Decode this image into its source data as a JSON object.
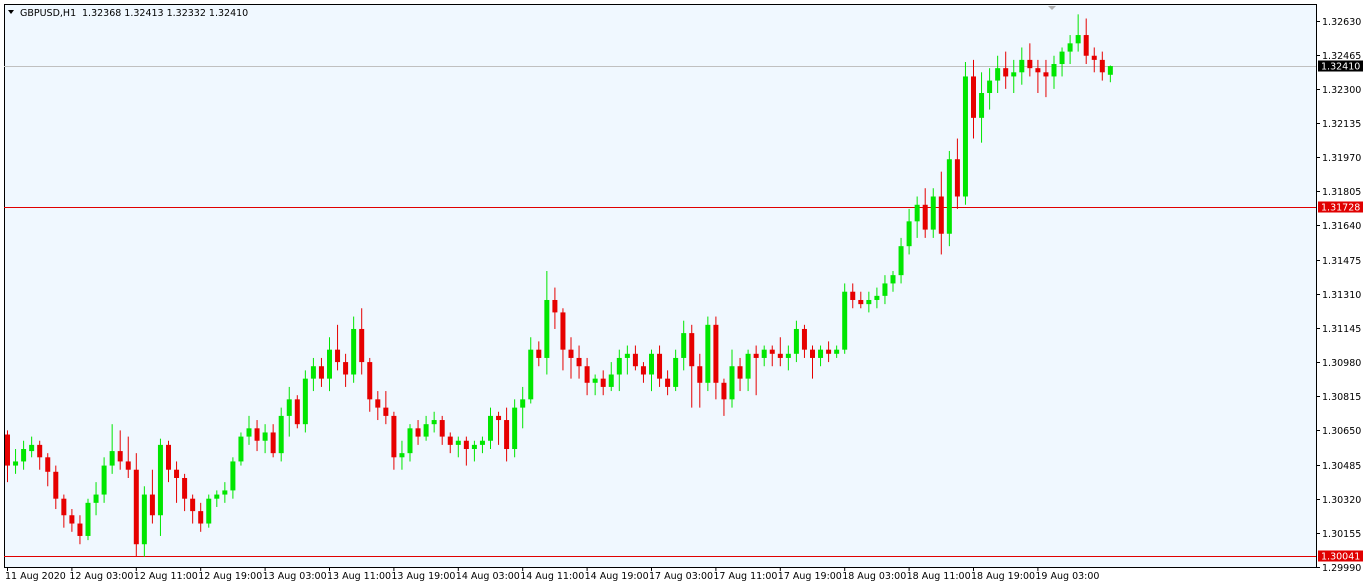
{
  "header": {
    "symbol": "GBPUSD,H1",
    "ohlc": "1.32368 1.32413 1.32332 1.32410"
  },
  "colors": {
    "background": "#f0f8ff",
    "bull": "#00e600",
    "bear": "#e60000",
    "hline": "#e00000",
    "bid_line": "#c0c0c0",
    "frame": "#000000"
  },
  "chart_data": {
    "type": "candlestick",
    "symbol": "GBPUSD",
    "timeframe": "H1",
    "ylim": [
      1.2999,
      1.3271
    ],
    "y_ticks": [
      "1.32630",
      "1.32465",
      "1.32300",
      "1.32135",
      "1.31970",
      "1.31805",
      "1.31640",
      "1.31475",
      "1.31310",
      "1.31145",
      "1.30980",
      "1.30815",
      "1.30650",
      "1.30485",
      "1.30320",
      "1.30155",
      "1.29990"
    ],
    "x_labels": [
      "11 Aug 2020",
      "12 Aug 03:00",
      "12 Aug 11:00",
      "12 Aug 19:00",
      "13 Aug 03:00",
      "13 Aug 11:00",
      "13 Aug 19:00",
      "14 Aug 03:00",
      "14 Aug 11:00",
      "14 Aug 19:00",
      "17 Aug 03:00",
      "17 Aug 11:00",
      "17 Aug 19:00",
      "18 Aug 03:00",
      "18 Aug 11:00",
      "18 Aug 19:00",
      "19 Aug 03:00"
    ],
    "x_label_every": 8,
    "horizontal_lines": [
      {
        "value": 1.31728,
        "label": "1.31728",
        "style": "red"
      },
      {
        "value": 1.30041,
        "label": "1.30041",
        "style": "red"
      }
    ],
    "current_price": {
      "value": 1.3241,
      "label": "1.32410"
    },
    "candles": [
      [
        1.3063,
        1.3065,
        1.304,
        1.3048
      ],
      [
        1.3048,
        1.3056,
        1.3044,
        1.305
      ],
      [
        1.305,
        1.306,
        1.3046,
        1.3056
      ],
      [
        1.3055,
        1.3062,
        1.3052,
        1.3058
      ],
      [
        1.3058,
        1.306,
        1.3046,
        1.3052
      ],
      [
        1.3052,
        1.3054,
        1.3038,
        1.3045
      ],
      [
        1.3045,
        1.3048,
        1.3027,
        1.3032
      ],
      [
        1.3032,
        1.3034,
        1.3018,
        1.3024
      ],
      [
        1.3024,
        1.3027,
        1.3016,
        1.302
      ],
      [
        1.302,
        1.3024,
        1.301,
        1.3014
      ],
      [
        1.3014,
        1.3032,
        1.3012,
        1.303
      ],
      [
        1.303,
        1.304,
        1.3024,
        1.3034
      ],
      [
        1.3034,
        1.3052,
        1.303,
        1.3048
      ],
      [
        1.3048,
        1.3068,
        1.3044,
        1.3055
      ],
      [
        1.3055,
        1.3065,
        1.3046,
        1.305
      ],
      [
        1.305,
        1.3062,
        1.3042,
        1.3046
      ],
      [
        1.3046,
        1.3054,
        1.3004,
        1.301
      ],
      [
        1.301,
        1.3038,
        1.3004,
        1.3034
      ],
      [
        1.3034,
        1.3046,
        1.302,
        1.3024
      ],
      [
        1.3024,
        1.3061,
        1.3014,
        1.3058
      ],
      [
        1.3058,
        1.306,
        1.304,
        1.3046
      ],
      [
        1.3046,
        1.305,
        1.303,
        1.3042
      ],
      [
        1.3042,
        1.3044,
        1.3026,
        1.3032
      ],
      [
        1.3032,
        1.3034,
        1.302,
        1.3026
      ],
      [
        1.3026,
        1.303,
        1.3016,
        1.302
      ],
      [
        1.302,
        1.3034,
        1.3018,
        1.3032
      ],
      [
        1.3032,
        1.3036,
        1.3028,
        1.3034
      ],
      [
        1.3034,
        1.304,
        1.303,
        1.3036
      ],
      [
        1.3036,
        1.3052,
        1.3032,
        1.305
      ],
      [
        1.305,
        1.3064,
        1.3048,
        1.3062
      ],
      [
        1.3062,
        1.3072,
        1.3058,
        1.3066
      ],
      [
        1.3066,
        1.307,
        1.3055,
        1.306
      ],
      [
        1.306,
        1.3068,
        1.3054,
        1.3064
      ],
      [
        1.3064,
        1.3068,
        1.3052,
        1.3054
      ],
      [
        1.3054,
        1.3076,
        1.305,
        1.3072
      ],
      [
        1.3072,
        1.3086,
        1.3062,
        1.308
      ],
      [
        1.308,
        1.3082,
        1.3066,
        1.3068
      ],
      [
        1.3068,
        1.3094,
        1.3064,
        1.309
      ],
      [
        1.309,
        1.31,
        1.3084,
        1.3096
      ],
      [
        1.3096,
        1.31,
        1.3086,
        1.309
      ],
      [
        1.309,
        1.311,
        1.3084,
        1.3104
      ],
      [
        1.3104,
        1.3116,
        1.3094,
        1.3098
      ],
      [
        1.3098,
        1.3102,
        1.3086,
        1.3092
      ],
      [
        1.3092,
        1.312,
        1.3088,
        1.3114
      ],
      [
        1.3114,
        1.3124,
        1.3092,
        1.3098
      ],
      [
        1.3098,
        1.31,
        1.3074,
        1.308
      ],
      [
        1.308,
        1.3084,
        1.307,
        1.3076
      ],
      [
        1.3076,
        1.3084,
        1.3068,
        1.3072
      ],
      [
        1.3072,
        1.3074,
        1.3046,
        1.3052
      ],
      [
        1.3052,
        1.306,
        1.3046,
        1.3054
      ],
      [
        1.3054,
        1.3068,
        1.305,
        1.3066
      ],
      [
        1.3066,
        1.307,
        1.3058,
        1.3062
      ],
      [
        1.3062,
        1.3072,
        1.306,
        1.3068
      ],
      [
        1.3068,
        1.3074,
        1.3064,
        1.307
      ],
      [
        1.307,
        1.3072,
        1.3058,
        1.3062
      ],
      [
        1.3062,
        1.3064,
        1.3054,
        1.3058
      ],
      [
        1.3058,
        1.3062,
        1.3052,
        1.306
      ],
      [
        1.306,
        1.3062,
        1.3048,
        1.3056
      ],
      [
        1.3056,
        1.306,
        1.305,
        1.3058
      ],
      [
        1.3058,
        1.3062,
        1.3054,
        1.306
      ],
      [
        1.306,
        1.3076,
        1.3056,
        1.3072
      ],
      [
        1.3072,
        1.3074,
        1.3058,
        1.307
      ],
      [
        1.307,
        1.3076,
        1.305,
        1.3056
      ],
      [
        1.3056,
        1.308,
        1.3052,
        1.3076
      ],
      [
        1.3076,
        1.3086,
        1.3066,
        1.308
      ],
      [
        1.308,
        1.311,
        1.3078,
        1.3104
      ],
      [
        1.3104,
        1.3108,
        1.3096,
        1.31
      ],
      [
        1.31,
        1.3142,
        1.3092,
        1.3128
      ],
      [
        1.3128,
        1.3134,
        1.3114,
        1.3122
      ],
      [
        1.3122,
        1.3124,
        1.3094,
        1.3104
      ],
      [
        1.3104,
        1.311,
        1.309,
        1.31
      ],
      [
        1.31,
        1.3106,
        1.309,
        1.3096
      ],
      [
        1.3096,
        1.31,
        1.3082,
        1.3088
      ],
      [
        1.3088,
        1.3092,
        1.3082,
        1.309
      ],
      [
        1.309,
        1.3094,
        1.3082,
        1.3086
      ],
      [
        1.3086,
        1.3098,
        1.3084,
        1.3092
      ],
      [
        1.3092,
        1.3104,
        1.3084,
        1.31
      ],
      [
        1.31,
        1.3106,
        1.3092,
        1.3102
      ],
      [
        1.3102,
        1.3106,
        1.3094,
        1.3096
      ],
      [
        1.3096,
        1.3098,
        1.3088,
        1.3092
      ],
      [
        1.3092,
        1.3104,
        1.3084,
        1.3102
      ],
      [
        1.3102,
        1.3106,
        1.3086,
        1.309
      ],
      [
        1.309,
        1.3094,
        1.3082,
        1.3086
      ],
      [
        1.3086,
        1.3104,
        1.3084,
        1.31
      ],
      [
        1.31,
        1.3118,
        1.3094,
        1.3112
      ],
      [
        1.3112,
        1.3116,
        1.3076,
        1.3096
      ],
      [
        1.3096,
        1.3102,
        1.3076,
        1.3088
      ],
      [
        1.3088,
        1.312,
        1.3084,
        1.3116
      ],
      [
        1.3116,
        1.312,
        1.308,
        1.3088
      ],
      [
        1.3088,
        1.309,
        1.3072,
        1.308
      ],
      [
        1.308,
        1.3104,
        1.3076,
        1.3096
      ],
      [
        1.3096,
        1.31,
        1.3084,
        1.309
      ],
      [
        1.309,
        1.3104,
        1.3084,
        1.3102
      ],
      [
        1.3102,
        1.3106,
        1.3082,
        1.31
      ],
      [
        1.31,
        1.3106,
        1.3096,
        1.3104
      ],
      [
        1.3104,
        1.3106,
        1.3096,
        1.3102
      ],
      [
        1.3102,
        1.311,
        1.3096,
        1.31
      ],
      [
        1.31,
        1.3106,
        1.3094,
        1.3102
      ],
      [
        1.3102,
        1.3118,
        1.3098,
        1.3114
      ],
      [
        1.3114,
        1.3116,
        1.31,
        1.3104
      ],
      [
        1.3104,
        1.3106,
        1.309,
        1.31
      ],
      [
        1.31,
        1.3106,
        1.3096,
        1.3104
      ],
      [
        1.3104,
        1.3108,
        1.3098,
        1.3102
      ],
      [
        1.3102,
        1.3106,
        1.31,
        1.3104
      ],
      [
        1.3104,
        1.3136,
        1.3102,
        1.3132
      ],
      [
        1.3132,
        1.3136,
        1.3124,
        1.3128
      ],
      [
        1.3128,
        1.3132,
        1.3124,
        1.3126
      ],
      [
        1.3126,
        1.3132,
        1.3122,
        1.3128
      ],
      [
        1.3128,
        1.3134,
        1.3124,
        1.313
      ],
      [
        1.313,
        1.314,
        1.3126,
        1.3136
      ],
      [
        1.3136,
        1.3142,
        1.3132,
        1.314
      ],
      [
        1.314,
        1.3158,
        1.3136,
        1.3154
      ],
      [
        1.3154,
        1.3172,
        1.315,
        1.3166
      ],
      [
        1.3166,
        1.3178,
        1.3158,
        1.3174
      ],
      [
        1.3174,
        1.3182,
        1.3158,
        1.3162
      ],
      [
        1.3162,
        1.3182,
        1.3158,
        1.3178
      ],
      [
        1.3178,
        1.319,
        1.315,
        1.316
      ],
      [
        1.316,
        1.32,
        1.3154,
        1.3196
      ],
      [
        1.3196,
        1.3206,
        1.3172,
        1.3178
      ],
      [
        1.3178,
        1.3243,
        1.3174,
        1.3236
      ],
      [
        1.3236,
        1.3244,
        1.3206,
        1.3216
      ],
      [
        1.3216,
        1.3238,
        1.3204,
        1.3228
      ],
      [
        1.3228,
        1.324,
        1.322,
        1.3234
      ],
      [
        1.3234,
        1.3246,
        1.3228,
        1.324
      ],
      [
        1.324,
        1.3248,
        1.323,
        1.3236
      ],
      [
        1.3236,
        1.3244,
        1.3228,
        1.3238
      ],
      [
        1.3238,
        1.325,
        1.3232,
        1.3244
      ],
      [
        1.3244,
        1.3252,
        1.3236,
        1.324
      ],
      [
        1.324,
        1.3244,
        1.3228,
        1.3238
      ],
      [
        1.3238,
        1.3244,
        1.3226,
        1.3236
      ],
      [
        1.3236,
        1.3246,
        1.323,
        1.3242
      ],
      [
        1.3242,
        1.325,
        1.3236,
        1.3248
      ],
      [
        1.3248,
        1.3256,
        1.3242,
        1.3252
      ],
      [
        1.3252,
        1.3266,
        1.3248,
        1.3256
      ],
      [
        1.3256,
        1.3264,
        1.3242,
        1.3246
      ],
      [
        1.3246,
        1.325,
        1.3238,
        1.3244
      ],
      [
        1.3244,
        1.3248,
        1.3234,
        1.3238
      ],
      [
        1.32368,
        1.32413,
        1.32332,
        1.3241
      ]
    ]
  }
}
